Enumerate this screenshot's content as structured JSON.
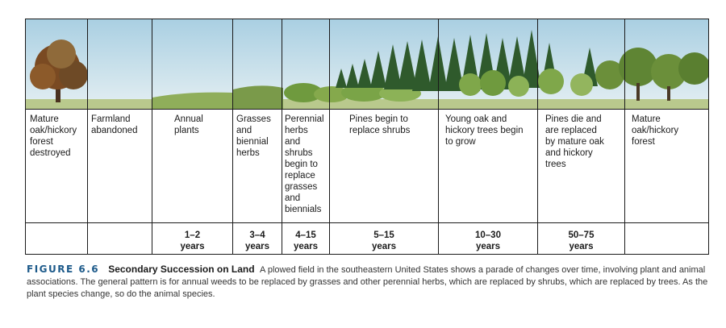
{
  "stages": [
    {
      "label": "Mature\noak/hickory\nforest\ndestroyed",
      "duration": ""
    },
    {
      "label": "Farmland\nabandoned",
      "duration": ""
    },
    {
      "label": "Annual\nplants",
      "duration": "1–2\nyears"
    },
    {
      "label": "Grasses\nand\nbiennial\nherbs",
      "duration": "3–4\nyears"
    },
    {
      "label": "Perennial\nherbs\nand\nshrubs\nbegin to\nreplace\ngrasses\nand\nbiennials",
      "duration": "4–15\nyears"
    },
    {
      "label": "Pines begin to\nreplace shrubs",
      "duration": "5–15\nyears"
    },
    {
      "label": "Young oak and\nhickory trees begin\nto grow",
      "duration": "10–30\nyears"
    },
    {
      "label": "Pines die and\nare replaced\nby mature oak\nand hickory\ntrees",
      "duration": "50–75\nyears"
    },
    {
      "label": "Mature\noak/hickory\nforest",
      "duration": ""
    }
  ],
  "caption": {
    "figure_label": "FIGURE 6.6",
    "title": "Secondary Succession on Land",
    "text": "A plowed field in the southeastern United States shows a parade of changes over time, involving plant and animal associations. The general pattern is for annual weeds to be replaced by grasses and other perennial herbs, which are replaced by shrubs, which are replaced by trees. As the plant species change, so do the animal species."
  },
  "colors": {
    "sky": "#cfe3ee",
    "grass": "#9dbf6a",
    "pine": "#2f5a2c",
    "oak": "#6b8f3a",
    "autumn": "#8a4a1e",
    "figure_label": "#1d5a8a"
  }
}
